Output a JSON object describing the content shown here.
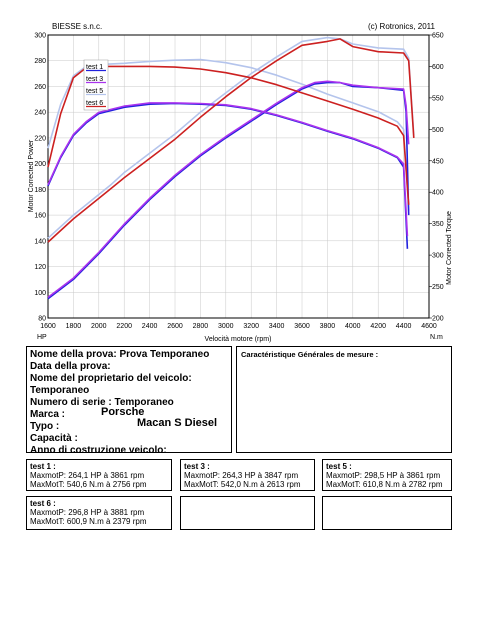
{
  "header": {
    "left": "BIESSE s.n.c.",
    "right": "(c) Rotronics, 2011"
  },
  "chart_data": {
    "type": "line",
    "xlabel": "Velocità motore (rpm)",
    "ylabel_left": "Motor Corrected Power",
    "ylabel_right": "Motor Corrected Torque",
    "unit_left": "HP",
    "unit_right": "N.m",
    "xlim": [
      1600,
      4600
    ],
    "ylim_left": [
      80,
      300
    ],
    "ylim_right": [
      200,
      650
    ],
    "x_ticks": [
      "1600",
      "1800",
      "2000",
      "2200",
      "2400",
      "2600",
      "2800",
      "3000",
      "3200",
      "3400",
      "3600",
      "3800",
      "4000",
      "4200",
      "4400",
      "4600"
    ],
    "y_left_ticks": [
      "80",
      "100",
      "120",
      "140",
      "160",
      "180",
      "200",
      "220",
      "240",
      "260",
      "280",
      "300"
    ],
    "y_right_ticks": [
      "200",
      "250",
      "300",
      "350",
      "400",
      "450",
      "500",
      "550",
      "600",
      "650"
    ],
    "grid": true,
    "legend_position": "top-left",
    "legend": [
      "test 1",
      "test 3",
      "test 5",
      "test 6"
    ],
    "series": [
      {
        "name": "test 1",
        "axis": "left",
        "color": "#2222dd",
        "points": [
          [
            1600,
            95
          ],
          [
            1800,
            110
          ],
          [
            2000,
            130
          ],
          [
            2200,
            152
          ],
          [
            2400,
            172
          ],
          [
            2600,
            190
          ],
          [
            2800,
            206
          ],
          [
            3000,
            220
          ],
          [
            3200,
            233
          ],
          [
            3400,
            246
          ],
          [
            3600,
            258
          ],
          [
            3700,
            262
          ],
          [
            3800,
            263
          ],
          [
            3900,
            263
          ],
          [
            4000,
            260
          ],
          [
            4200,
            259
          ],
          [
            4400,
            257
          ],
          [
            4420,
            240
          ],
          [
            4440,
            160
          ]
        ]
      },
      {
        "name": "test 3",
        "axis": "left",
        "color": "#aa33ee",
        "points": [
          [
            1600,
            96
          ],
          [
            1800,
            111
          ],
          [
            2000,
            131
          ],
          [
            2200,
            153
          ],
          [
            2400,
            173
          ],
          [
            2600,
            191
          ],
          [
            2800,
            207
          ],
          [
            3000,
            221
          ],
          [
            3200,
            234
          ],
          [
            3400,
            247
          ],
          [
            3600,
            259
          ],
          [
            3700,
            263
          ],
          [
            3800,
            264
          ],
          [
            3900,
            263
          ],
          [
            4000,
            261
          ],
          [
            4200,
            259
          ],
          [
            4400,
            258
          ],
          [
            4420,
            245
          ],
          [
            4440,
            215
          ]
        ]
      },
      {
        "name": "test 5",
        "axis": "left",
        "color": "#b4c4ec",
        "points": [
          [
            1600,
            142
          ],
          [
            1800,
            160
          ],
          [
            2000,
            176
          ],
          [
            2100,
            184
          ],
          [
            2200,
            193
          ],
          [
            2400,
            208
          ],
          [
            2600,
            223
          ],
          [
            2800,
            240
          ],
          [
            3000,
            255
          ],
          [
            3200,
            270
          ],
          [
            3400,
            283
          ],
          [
            3600,
            295
          ],
          [
            3800,
            298
          ],
          [
            3900,
            297
          ],
          [
            4000,
            293
          ],
          [
            4200,
            290
          ],
          [
            4400,
            289
          ],
          [
            4440,
            282
          ],
          [
            4480,
            222
          ]
        ]
      },
      {
        "name": "test 6",
        "axis": "left",
        "color": "#cc2020",
        "points": [
          [
            1600,
            139
          ],
          [
            1800,
            157
          ],
          [
            2000,
            173
          ],
          [
            2100,
            181
          ],
          [
            2200,
            189
          ],
          [
            2400,
            204
          ],
          [
            2600,
            219
          ],
          [
            2800,
            236
          ],
          [
            3000,
            252
          ],
          [
            3200,
            267
          ],
          [
            3400,
            280
          ],
          [
            3600,
            292
          ],
          [
            3800,
            295
          ],
          [
            3900,
            297
          ],
          [
            4000,
            291
          ],
          [
            4200,
            287
          ],
          [
            4400,
            286
          ],
          [
            4440,
            280
          ],
          [
            4480,
            220
          ]
        ]
      },
      {
        "name": "test 1",
        "axis": "right",
        "color": "#2222dd",
        "points": [
          [
            1600,
            410
          ],
          [
            1700,
            455
          ],
          [
            1800,
            490
          ],
          [
            1900,
            510
          ],
          [
            2000,
            525
          ],
          [
            2200,
            535
          ],
          [
            2400,
            540
          ],
          [
            2600,
            541
          ],
          [
            2800,
            540
          ],
          [
            3000,
            538
          ],
          [
            3200,
            532
          ],
          [
            3400,
            522
          ],
          [
            3600,
            510
          ],
          [
            3800,
            497
          ],
          [
            4000,
            485
          ],
          [
            4200,
            470
          ],
          [
            4350,
            455
          ],
          [
            4400,
            440
          ],
          [
            4430,
            310
          ]
        ]
      },
      {
        "name": "test 3",
        "axis": "right",
        "color": "#aa33ee",
        "points": [
          [
            1600,
            412
          ],
          [
            1700,
            457
          ],
          [
            1800,
            492
          ],
          [
            1900,
            512
          ],
          [
            2000,
            527
          ],
          [
            2200,
            537
          ],
          [
            2400,
            542
          ],
          [
            2600,
            542
          ],
          [
            2800,
            541
          ],
          [
            3000,
            539
          ],
          [
            3200,
            533
          ],
          [
            3400,
            523
          ],
          [
            3600,
            511
          ],
          [
            3800,
            498
          ],
          [
            4000,
            486
          ],
          [
            4200,
            471
          ],
          [
            4350,
            456
          ],
          [
            4400,
            445
          ],
          [
            4430,
            330
          ]
        ]
      },
      {
        "name": "test 5",
        "axis": "right",
        "color": "#b4c4ec",
        "points": [
          [
            1600,
            470
          ],
          [
            1700,
            540
          ],
          [
            1800,
            585
          ],
          [
            1900,
            600
          ],
          [
            2000,
            603
          ],
          [
            2200,
            605
          ],
          [
            2400,
            608
          ],
          [
            2600,
            610
          ],
          [
            2800,
            611
          ],
          [
            3000,
            606
          ],
          [
            3200,
            598
          ],
          [
            3400,
            586
          ],
          [
            3600,
            572
          ],
          [
            3800,
            556
          ],
          [
            4000,
            542
          ],
          [
            4200,
            528
          ],
          [
            4350,
            512
          ],
          [
            4400,
            500
          ],
          [
            4440,
            370
          ]
        ]
      },
      {
        "name": "test 6",
        "axis": "right",
        "color": "#cc2020",
        "points": [
          [
            1600,
            440
          ],
          [
            1700,
            525
          ],
          [
            1800,
            582
          ],
          [
            1900,
            598
          ],
          [
            2000,
            600
          ],
          [
            2200,
            600
          ],
          [
            2400,
            600
          ],
          [
            2600,
            599
          ],
          [
            2800,
            596
          ],
          [
            3000,
            590
          ],
          [
            3200,
            582
          ],
          [
            3400,
            571
          ],
          [
            3600,
            558
          ],
          [
            3800,
            545
          ],
          [
            4000,
            532
          ],
          [
            4200,
            518
          ],
          [
            4350,
            505
          ],
          [
            4400,
            490
          ],
          [
            4440,
            380
          ]
        ]
      }
    ]
  },
  "info": {
    "fields": [
      {
        "label": "Nome della prova: Prova Temporaneo"
      },
      {
        "label": "Data della prova:"
      },
      {
        "label": "Nome del proprietario del veicolo:"
      },
      {
        "label": "Temporaneo"
      },
      {
        "label": "Numero di serie  : Temporaneo"
      },
      {
        "label": "Marca  :"
      },
      {
        "label": "Typo   :"
      },
      {
        "label": "Capacità  :"
      },
      {
        "label": "Anno di costruzione veicolo:"
      }
    ],
    "marca_value": "Porsche",
    "typo_value": "Macan S Diesel",
    "right_title": "Caractéristique Générales de mesure :"
  },
  "results": [
    {
      "title": "test 1 :",
      "line1": "MaxmotP: 264,1 HP à 3861 rpm",
      "line2": "MaxMotT: 540,6 N.m à 2756 rpm"
    },
    {
      "title": "test 3 :",
      "line1": "MaxmotP: 264,3 HP à 3847 rpm",
      "line2": "MaxMotT: 542,0 N.m à 2613 rpm"
    },
    {
      "title": "test 5 :",
      "line1": "MaxmotP: 298,5 HP à 3861 rpm",
      "line2": "MaxMotT: 610,8 N.m à 2782 rpm"
    },
    {
      "title": "test 6 :",
      "line1": "MaxmotP: 296,8 HP à 3881 rpm",
      "line2": "MaxMotT: 600,9 N.m à 2379 rpm"
    }
  ]
}
